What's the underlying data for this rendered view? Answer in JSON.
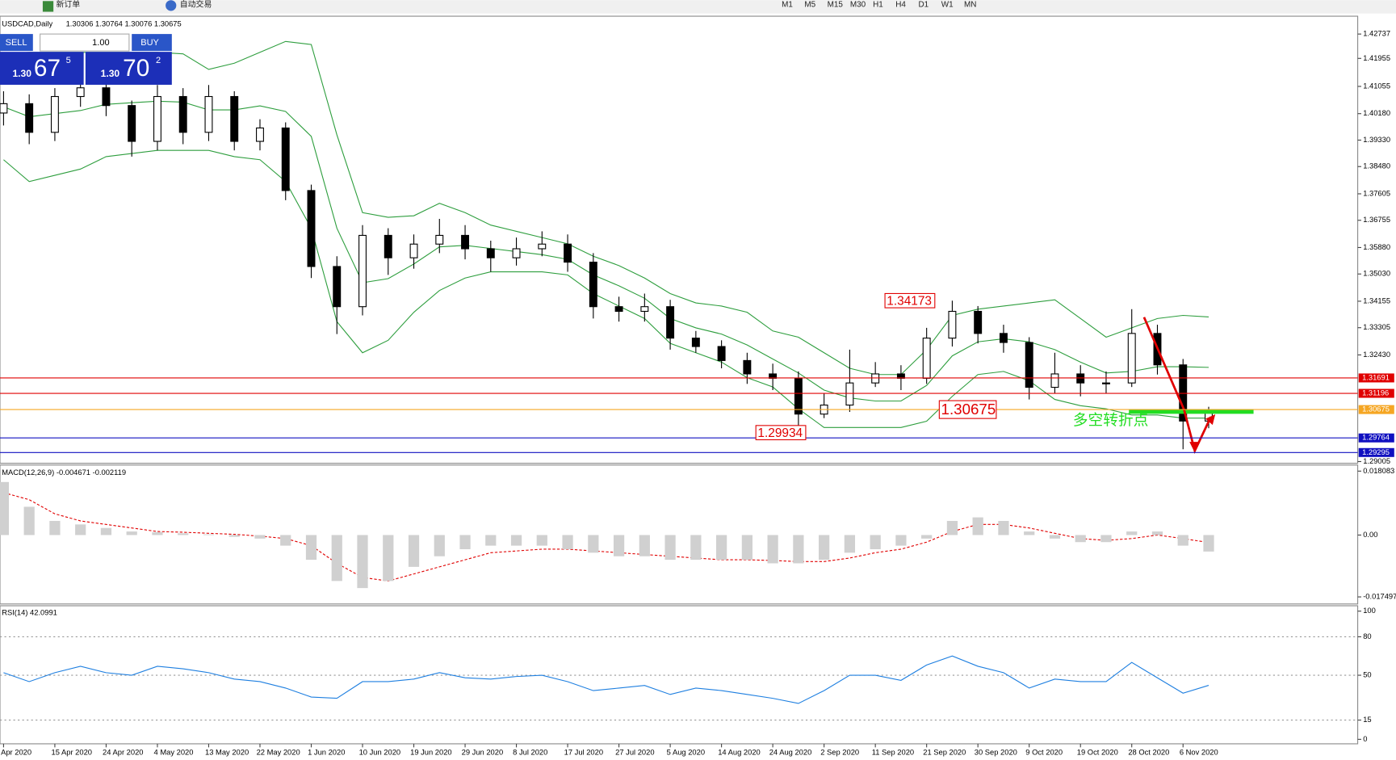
{
  "toolbar": {
    "new_order": "新订单",
    "auto_trading": "自动交易",
    "timeframes": [
      "M1",
      "M5",
      "M15",
      "M30",
      "H1",
      "H4",
      "D1",
      "W1",
      "MN"
    ]
  },
  "trade_panel": {
    "sell": "SELL",
    "lot": "1.00",
    "buy": "BUY",
    "sell_price": {
      "prefix": "1.30",
      "big": "67",
      "small": "5"
    },
    "buy_price": {
      "prefix": "1.30",
      "big": "70",
      "small": "2"
    }
  },
  "chart_data": {
    "type": "candlestick",
    "title": "USDCAD,Daily",
    "ohlc_label": "1.30306 1.30764 1.30076 1.30675",
    "categories": [
      "Apr 2020",
      null,
      "15 Apr 2020",
      null,
      "24 Apr 2020",
      null,
      "4 May 2020",
      null,
      "13 May 2020",
      null,
      "22 May 2020",
      null,
      "1 Jun 2020",
      null,
      "10 Jun 2020",
      null,
      "19 Jun 2020",
      null,
      "29 Jun 2020",
      null,
      "8 Jul 2020",
      null,
      "17 Jul 2020",
      null,
      "27 Jul 2020",
      null,
      "5 Aug 2020",
      null,
      "14 Aug 2020",
      null,
      "24 Aug 2020",
      null,
      "2 Sep 2020",
      null,
      "11 Sep 2020",
      null,
      "21 Sep 2020",
      null,
      "30 Sep 2020",
      null,
      "9 Oct 2020",
      null,
      "19 Oct 2020",
      null,
      "28 Oct 2020",
      null,
      "6 Nov 2020",
      null
    ],
    "open": [
      1.402,
      1.405,
      1.3958,
      1.4073,
      1.4101,
      1.4044,
      1.3929,
      1.4073,
      1.3958,
      1.4073,
      1.3929,
      1.3972,
      1.3771,
      1.3527,
      1.3398,
      1.3627,
      1.3555,
      1.3599,
      1.3627,
      1.3584,
      1.3555,
      1.3584,
      1.3599,
      1.3541,
      1.3398,
      1.3383,
      1.3398,
      1.3297,
      1.327,
      1.3225,
      1.3182,
      1.3168,
      1.3053,
      1.3082,
      1.3153,
      1.3182,
      1.3168,
      1.3297,
      1.3383,
      1.3312,
      1.3283,
      1.3139,
      1.3182,
      1.3153,
      1.3153,
      1.3312,
      1.3211,
      1.30306
    ],
    "high": [
      1.409,
      1.408,
      1.41,
      1.4135,
      1.412,
      1.406,
      1.411,
      1.41,
      1.411,
      1.409,
      1.4,
      1.399,
      1.379,
      1.356,
      1.366,
      1.365,
      1.363,
      1.368,
      1.366,
      1.361,
      1.362,
      1.364,
      1.363,
      1.357,
      1.343,
      1.344,
      1.342,
      1.332,
      1.329,
      1.325,
      1.3215,
      1.319,
      1.312,
      1.326,
      1.322,
      1.321,
      1.333,
      1.34173,
      1.34,
      1.334,
      1.33,
      1.325,
      1.321,
      1.319,
      1.339,
      1.334,
      1.323,
      1.30764
    ],
    "low": [
      1.398,
      1.392,
      1.393,
      1.404,
      1.401,
      1.388,
      1.39,
      1.392,
      1.393,
      1.39,
      1.39,
      1.374,
      1.349,
      1.331,
      1.337,
      1.35,
      1.352,
      1.357,
      1.355,
      1.351,
      1.353,
      1.356,
      1.351,
      1.336,
      1.335,
      1.335,
      1.326,
      1.325,
      1.32,
      1.315,
      1.313,
      1.29934,
      1.304,
      1.306,
      1.314,
      1.313,
      1.315,
      1.327,
      1.328,
      1.325,
      1.31,
      1.312,
      1.311,
      1.312,
      1.314,
      1.318,
      1.294,
      1.30076
    ],
    "close": [
      1.405,
      1.3958,
      1.4073,
      1.4101,
      1.4044,
      1.3929,
      1.4073,
      1.3958,
      1.4073,
      1.3929,
      1.3972,
      1.3771,
      1.3527,
      1.3398,
      1.3627,
      1.3555,
      1.3599,
      1.3627,
      1.3584,
      1.3555,
      1.3584,
      1.3599,
      1.3541,
      1.3398,
      1.3383,
      1.3398,
      1.3297,
      1.327,
      1.3225,
      1.3182,
      1.3168,
      1.3053,
      1.3082,
      1.3153,
      1.3182,
      1.3168,
      1.3297,
      1.3383,
      1.3312,
      1.3283,
      1.3139,
      1.3182,
      1.3153,
      1.3153,
      1.3312,
      1.3211,
      1.30306,
      1.30675
    ],
    "color_up": "#ffffff",
    "color_down": "#000000",
    "band_color": "#2e9e3e",
    "bands": [
      [
        1.421,
        1.4215,
        1.4215,
        1.4215,
        1.4215,
        1.4215,
        1.4215,
        1.421,
        1.416,
        1.418,
        1.4215,
        1.425,
        1.424,
        1.395,
        1.37,
        1.3685,
        1.369,
        1.373,
        1.37,
        1.366,
        1.364,
        1.362,
        1.36,
        1.356,
        1.353,
        1.349,
        1.344,
        1.341,
        1.34,
        1.338,
        1.332,
        1.33,
        1.325,
        1.32,
        1.318,
        1.318,
        1.326,
        1.337,
        1.339,
        1.34,
        1.341,
        1.342,
        1.336,
        1.33,
        1.333,
        1.336,
        1.337,
        1.3365
      ],
      [
        1.404,
        1.4008,
        1.4018,
        1.4028,
        1.4048,
        1.4053,
        1.4058,
        1.4055,
        1.403,
        1.403,
        1.4043,
        1.4025,
        1.3945,
        1.365,
        1.3475,
        1.3488,
        1.3535,
        1.359,
        1.3595,
        1.3585,
        1.3575,
        1.3565,
        1.355,
        1.35,
        1.3465,
        1.3425,
        1.336,
        1.333,
        1.331,
        1.3275,
        1.323,
        1.3185,
        1.313,
        1.3105,
        1.3095,
        1.3095,
        1.3145,
        1.324,
        1.3285,
        1.3295,
        1.3285,
        1.326,
        1.322,
        1.3185,
        1.319,
        1.3205,
        1.3205,
        1.3203
      ],
      [
        1.387,
        1.38,
        1.382,
        1.384,
        1.388,
        1.389,
        1.39,
        1.39,
        1.39,
        1.388,
        1.387,
        1.38,
        1.365,
        1.335,
        1.325,
        1.329,
        1.338,
        1.345,
        1.349,
        1.351,
        1.351,
        1.351,
        1.35,
        1.344,
        1.34,
        1.336,
        1.328,
        1.325,
        1.322,
        1.317,
        1.314,
        1.307,
        1.301,
        1.301,
        1.301,
        1.301,
        1.303,
        1.311,
        1.318,
        1.319,
        1.316,
        1.31,
        1.308,
        1.307,
        1.305,
        1.305,
        1.304,
        1.304
      ]
    ],
    "ylim": [
      1.2895,
      1.4331
    ],
    "yticks": [
      1.42737,
      1.41955,
      1.41055,
      {
        "value": 1.4018,
        "label": "1.40180"
      },
      {
        "value": 1.3933,
        "label": "1.39330"
      },
      {
        "value": 1.3848,
        "label": "1.38480"
      },
      1.37605,
      1.36755,
      {
        "value": 1.3588,
        "label": "1.35880"
      },
      {
        "value": 1.3503,
        "label": "1.35030"
      },
      1.34155,
      1.33305,
      {
        "value": 1.3243,
        "label": "1.32430"
      },
      1.29005
    ],
    "levels": [
      {
        "value": 1.31691,
        "color": "#e00000"
      },
      {
        "value": 1.31196,
        "color": "#e00000"
      },
      {
        "value": 1.30675,
        "color": "#f5a623"
      },
      {
        "value": 1.29764,
        "color": "#1010c0"
      },
      {
        "value": 1.29295,
        "color": "#1010c0"
      }
    ],
    "annotations": [
      {
        "value": 1.34173
      },
      {
        "value": 1.29934
      },
      {
        "value": 1.30675
      }
    ],
    "pivot_label": "多空转折点",
    "macd": {
      "label": "MACD(12,26,9) -0.004671 -0.002119",
      "histogram": [
        0.015,
        0.008,
        0.004,
        0.003,
        0.002,
        0.001,
        0.0008,
        0.0005,
        0.0002,
        -0.0005,
        -0.001,
        -0.003,
        -0.007,
        -0.013,
        -0.015,
        -0.013,
        -0.009,
        -0.006,
        -0.004,
        -0.003,
        -0.003,
        -0.003,
        -0.004,
        -0.005,
        -0.006,
        -0.006,
        -0.007,
        -0.007,
        -0.007,
        -0.007,
        -0.008,
        -0.008,
        -0.007,
        -0.005,
        -0.004,
        -0.003,
        -0.001,
        0.004,
        0.005,
        0.004,
        0.001,
        -0.001,
        -0.002,
        -0.002,
        0.001,
        0.001,
        -0.003,
        -0.004671
      ],
      "signal": [
        0.012,
        0.01,
        0.006,
        0.004,
        0.003,
        0.002,
        0.001,
        0.0008,
        0.0005,
        0.0002,
        -0.0003,
        -0.001,
        -0.003,
        -0.008,
        -0.012,
        -0.013,
        -0.011,
        -0.009,
        -0.007,
        -0.005,
        -0.0045,
        -0.004,
        -0.004,
        -0.0045,
        -0.005,
        -0.0055,
        -0.006,
        -0.0065,
        -0.007,
        -0.007,
        -0.0072,
        -0.0075,
        -0.0075,
        -0.0065,
        -0.005,
        -0.004,
        -0.002,
        0.001,
        0.003,
        0.003,
        0.002,
        0.0005,
        -0.001,
        -0.0015,
        -0.001,
        0,
        -0.001,
        -0.002119
      ],
      "ylim": [
        -0.0195,
        0.0198
      ],
      "yticks": [
        0.018083,
        {
          "value": 0,
          "label": "0.00"
        },
        -0.017497
      ]
    },
    "rsi": {
      "label": "RSI(14) 42.0991",
      "values": [
        52,
        45,
        52,
        57,
        52,
        50,
        57,
        55,
        52,
        47,
        45,
        40,
        33,
        32,
        45,
        45,
        47,
        52,
        48,
        47,
        49,
        50,
        45,
        38,
        40,
        42,
        35,
        40,
        38,
        35,
        32,
        28,
        38,
        50,
        50,
        46,
        58,
        65,
        57,
        52,
        40,
        47,
        45,
        45,
        60,
        48,
        36,
        42.0991
      ],
      "ylim": [
        -3.5,
        104.2
      ],
      "yticks": [
        100,
        80,
        50,
        15,
        0
      ],
      "levels": [
        80,
        50,
        15
      ],
      "color": "#1e7fe0"
    }
  }
}
